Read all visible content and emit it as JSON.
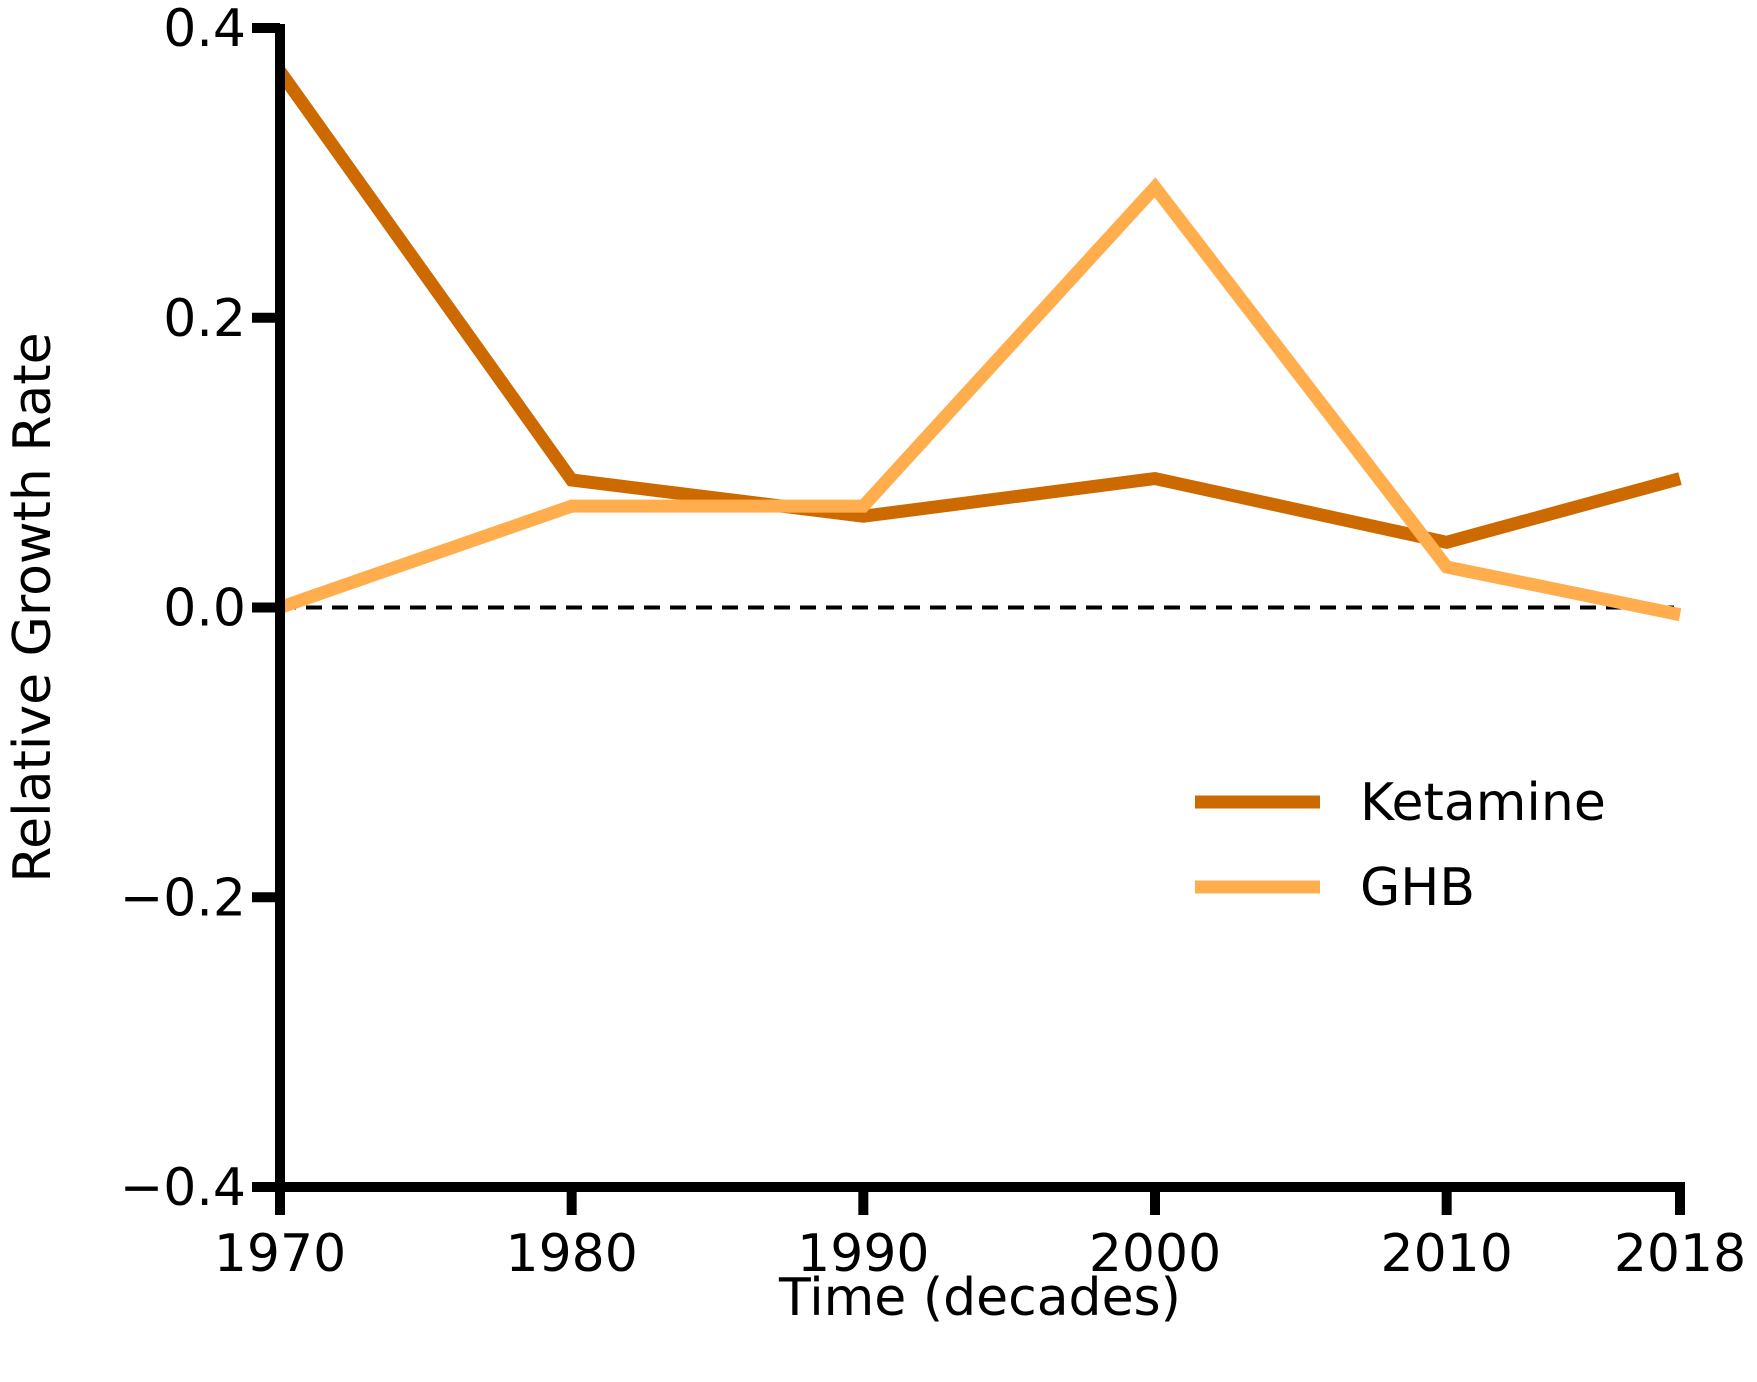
{
  "chart_data": {
    "type": "line",
    "title": "",
    "xlabel": "Time (decades)",
    "ylabel": "Relative Growth Rate",
    "x": [
      1970,
      1980,
      1990,
      2000,
      2010,
      2018
    ],
    "x_tick_labels": [
      "1970",
      "1980",
      "1990",
      "2000",
      "2010",
      "2018"
    ],
    "y_ticks": [
      -0.4,
      -0.2,
      0.0,
      0.2,
      0.4
    ],
    "y_tick_labels": [
      "−0.4",
      "−0.2",
      "0.0",
      "0.2",
      "0.4"
    ],
    "xlim": [
      1970,
      2018
    ],
    "ylim": [
      -0.4,
      0.4
    ],
    "grid": false,
    "reference_line": {
      "y": 0.0,
      "style": "dashed",
      "color": "#000000"
    },
    "legend": {
      "position": "center-right"
    },
    "series": [
      {
        "name": "Ketamine",
        "color": "#CC6A00",
        "values": [
          0.37,
          0.088,
          0.063,
          0.089,
          0.045,
          0.089
        ]
      },
      {
        "name": "GHB",
        "color": "#FFAD4D",
        "values": [
          0.0,
          0.07,
          0.07,
          0.29,
          0.028,
          -0.005
        ]
      }
    ]
  }
}
